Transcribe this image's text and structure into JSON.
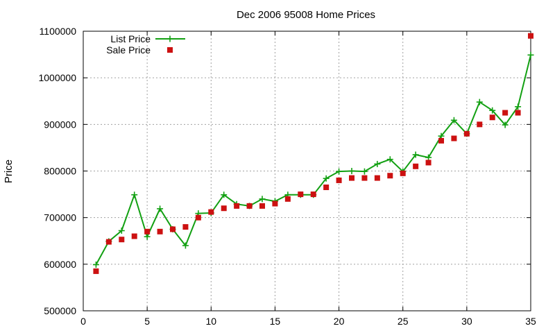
{
  "chart_data": {
    "type": "line",
    "title": "Dec 2006 95008 Home Prices",
    "xlabel": "",
    "ylabel": "Price",
    "xlim": [
      0,
      35
    ],
    "ylim": [
      500000,
      1100000
    ],
    "x_ticks": [
      0,
      5,
      10,
      15,
      20,
      25,
      30,
      35
    ],
    "y_ticks": [
      500000,
      600000,
      700000,
      800000,
      900000,
      1000000,
      1100000
    ],
    "x_tick_labels": [
      "0",
      "5",
      "10",
      "15",
      "20",
      "25",
      "30",
      "35"
    ],
    "y_tick_labels": [
      "500000",
      "600000",
      "700000",
      "800000",
      "900000",
      "1000000",
      "1100000"
    ],
    "grid": true,
    "legend_position": "top-left",
    "x": [
      1,
      2,
      3,
      4,
      5,
      6,
      7,
      8,
      9,
      10,
      11,
      12,
      13,
      14,
      15,
      16,
      17,
      18,
      19,
      20,
      21,
      22,
      23,
      24,
      25,
      26,
      27,
      28,
      29,
      30,
      31,
      32,
      33,
      34,
      35
    ],
    "series": [
      {
        "name": "List Price",
        "style": "linespoints",
        "color": "#12a012",
        "values": [
          599000,
          649000,
          672000,
          749000,
          659000,
          719000,
          675000,
          640000,
          709000,
          710000,
          749000,
          729000,
          725000,
          740000,
          735000,
          749000,
          749000,
          749000,
          784000,
          799000,
          800000,
          799000,
          815000,
          825000,
          799000,
          835000,
          829000,
          875000,
          909000,
          880000,
          948000,
          930000,
          899000,
          938000,
          1049000
        ]
      },
      {
        "name": "Sale Price",
        "style": "points",
        "color": "#cc1111",
        "values": [
          585000,
          648000,
          653000,
          660000,
          670000,
          670000,
          675000,
          680000,
          700000,
          712000,
          720000,
          725000,
          725000,
          725000,
          730000,
          740000,
          750000,
          750000,
          765000,
          780000,
          785000,
          785000,
          785000,
          790000,
          795000,
          810000,
          818000,
          865000,
          870000,
          880000,
          900000,
          915000,
          925000,
          925000,
          1090000
        ]
      }
    ]
  }
}
